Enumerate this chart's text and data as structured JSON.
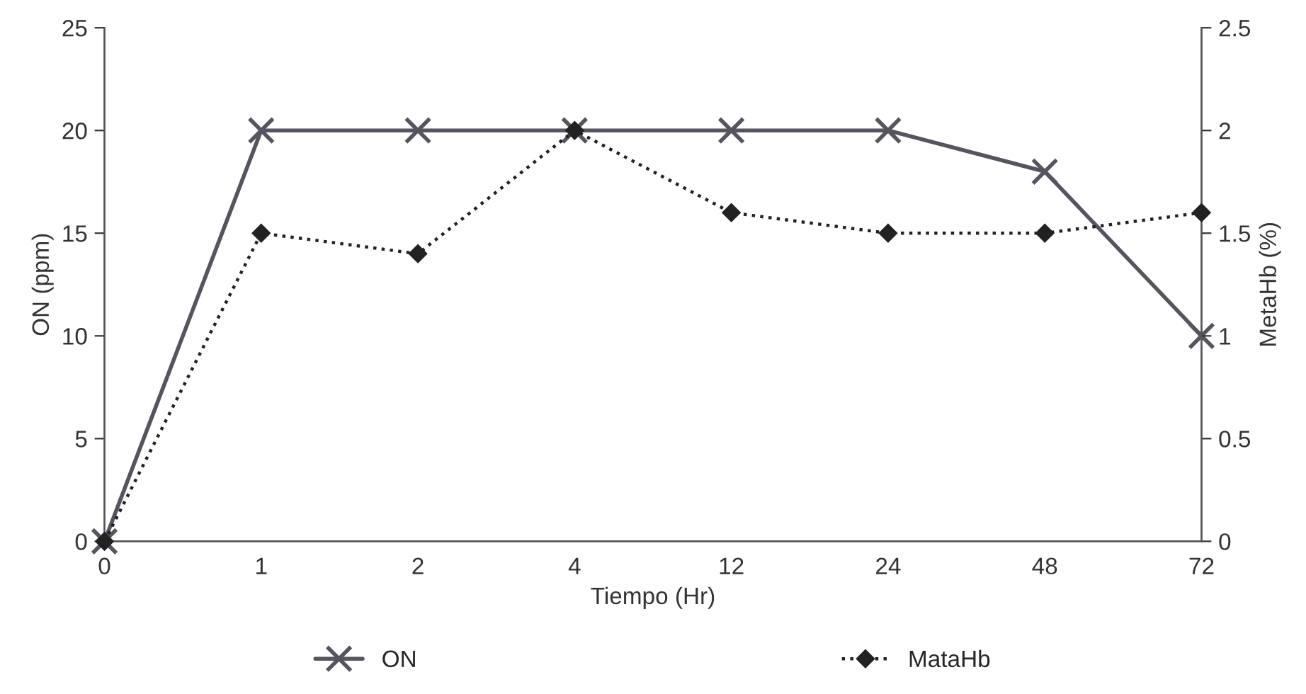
{
  "chart_data": {
    "type": "line",
    "xlabel": "Tiempo (Hr)",
    "ylabel": "ON (ppm)",
    "y2label": "MetaHb (%)",
    "categories": [
      "0",
      "1",
      "2",
      "4",
      "12",
      "24",
      "48",
      "72"
    ],
    "series": [
      {
        "name": "ON",
        "color": "#555560",
        "values": [
          0,
          20,
          20,
          20,
          20,
          20,
          18,
          10
        ],
        "marker": "cross",
        "line_style": "solid"
      },
      {
        "name": "MataHb",
        "color": "#222222",
        "values": [
          0,
          1.5,
          1.4,
          2.0,
          1.6,
          1.5,
          1.5,
          1.6
        ],
        "marker": "diamond",
        "line_style": "dotted",
        "axis": "y2"
      }
    ],
    "ylim": [
      0,
      25
    ],
    "yticks": [
      0,
      5,
      10,
      15,
      20,
      25
    ],
    "y2lim": [
      0,
      2.5
    ],
    "y2ticks": [
      0,
      {
        "value": 0.5,
        "label": "0.5"
      },
      1,
      1.5,
      2,
      2.5
    ],
    "grid": false,
    "legend": "bottom"
  }
}
